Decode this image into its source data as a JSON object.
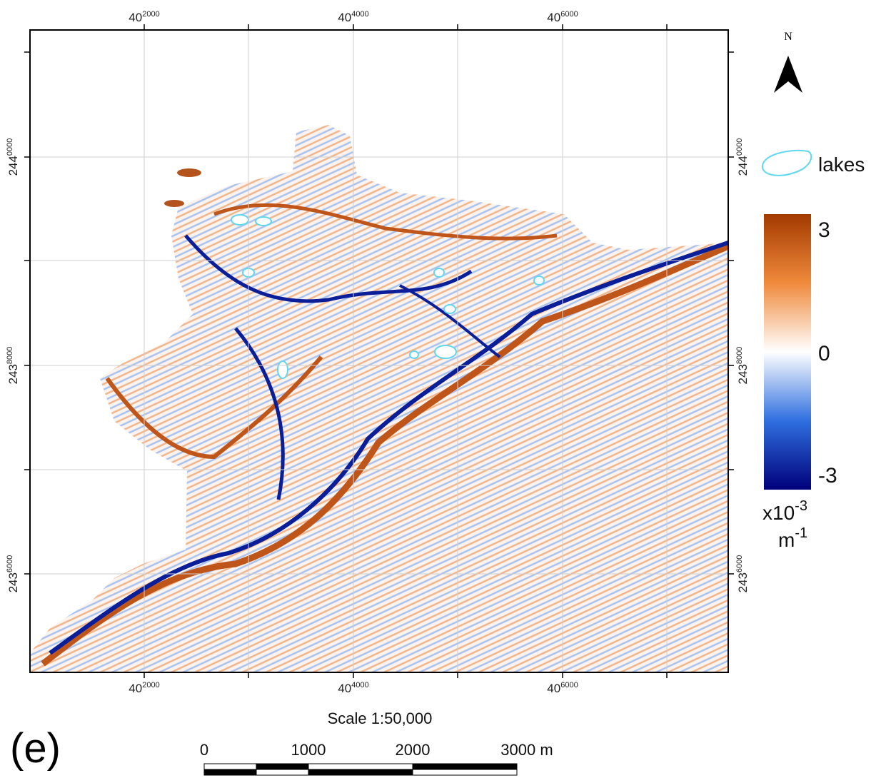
{
  "north_arrow": "N",
  "x_labels": [
    {
      "main": "40",
      "sup": "2000"
    },
    {
      "main": "40",
      "sup": "4000"
    },
    {
      "main": "40",
      "sup": "6000"
    }
  ],
  "y_labels": [
    {
      "main": "244",
      "sup": "0000"
    },
    {
      "main": "243",
      "sup": "8000"
    },
    {
      "main": "243",
      "sup": "6000"
    }
  ],
  "legend": {
    "lakes": "lakes"
  },
  "colorbar": {
    "max": "3",
    "mid": "0",
    "min": "-3",
    "unit_base": "x10",
    "unit_exp": "-3",
    "unit2": "m",
    "unit2_exp": "-1"
  },
  "scale": {
    "title": "Scale 1:50,000",
    "labels": [
      "0",
      "1000",
      "2000",
      "3000 m"
    ]
  },
  "panel": "(e)"
}
